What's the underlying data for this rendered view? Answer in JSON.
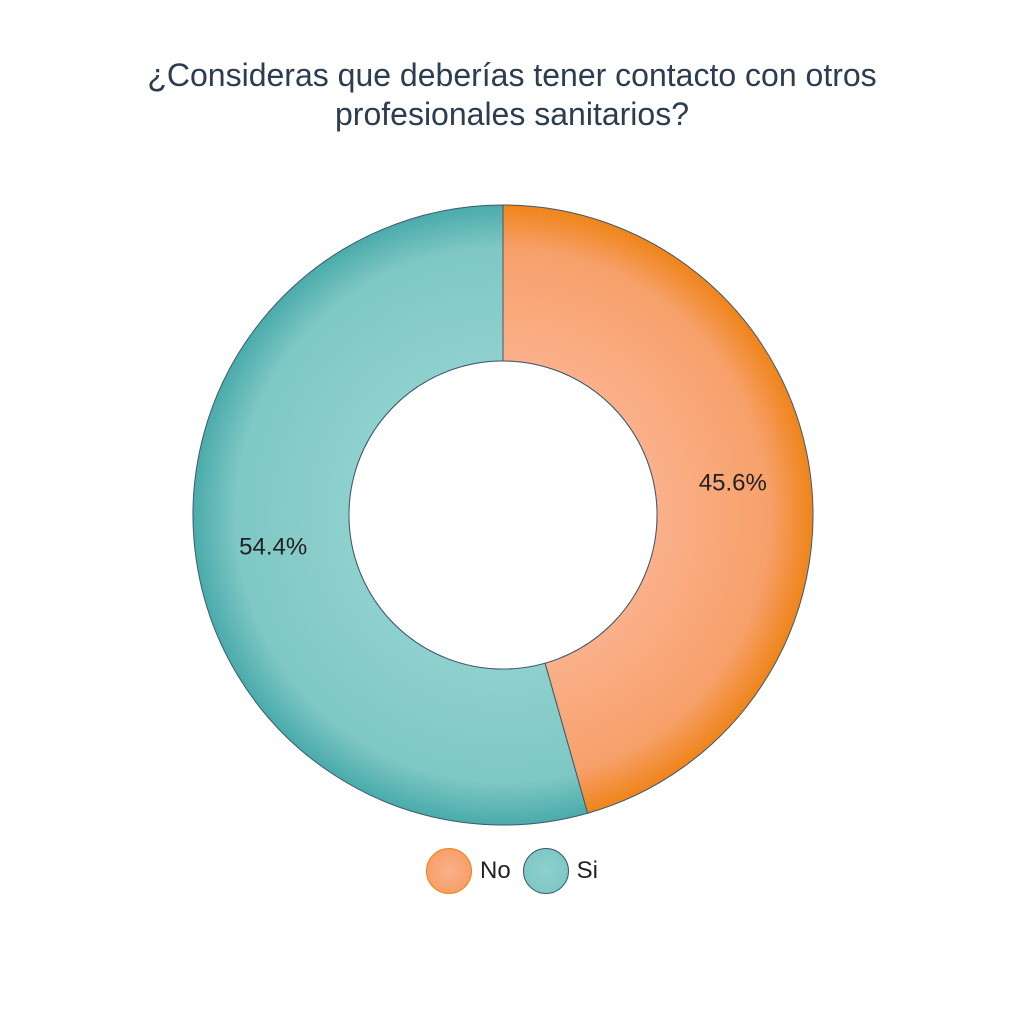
{
  "chart_data": {
    "type": "pie",
    "title_lines": [
      "¿Consideras que deberías tener contacto con otros",
      "profesionales sanitarios?"
    ],
    "hole": true,
    "slices": [
      {
        "label": "No",
        "value": 45.6,
        "text": "45.6%",
        "color": "#f7a06a",
        "edge_color": "#ef8419"
      },
      {
        "label": "Si",
        "value": 54.4,
        "text": "54.4%",
        "color": "#7fc8c5",
        "edge_color": "#4aabab"
      }
    ],
    "legend_placement": "bottom"
  }
}
